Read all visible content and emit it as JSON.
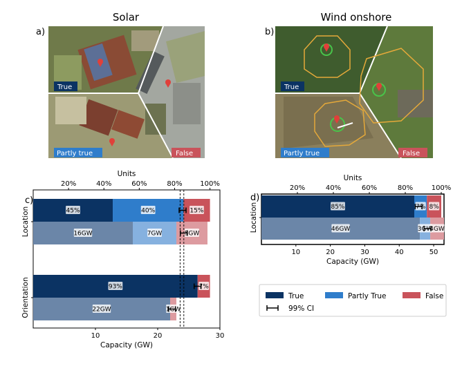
{
  "panels": {
    "a": {
      "title": "Solar",
      "label": "a)",
      "tags": {
        "true": "True",
        "partly": "Partly true",
        "false": "False"
      }
    },
    "b": {
      "title": "Wind onshore",
      "label": "b)",
      "tags": {
        "true": "True",
        "partly": "Partly true",
        "false": "False"
      }
    },
    "c": {
      "label": "c)"
    },
    "d": {
      "label": "d)"
    }
  },
  "colors": {
    "true_dark": "#0b3363",
    "partly_dark": "#2f7dcb",
    "false_dark": "#c9535b",
    "true_light": "#6b86a8",
    "partly_light": "#86b1df",
    "false_light": "#dd9ba0"
  },
  "legend": {
    "true": "True",
    "partly": "Partly True",
    "false": "False",
    "ci": "99% CI"
  },
  "chart_data": [
    {
      "type": "bar",
      "orientation": "horizontal-stacked",
      "title": "",
      "xlabel": "Capacity (GW)",
      "top_xlabel": "Units",
      "xlim": [
        0,
        30
      ],
      "xticks": [
        10,
        20,
        30
      ],
      "top_ticks": [
        "20%",
        "40%",
        "60%",
        "80%",
        "100%"
      ],
      "top_values": [
        20,
        40,
        60,
        80,
        100
      ],
      "groups": [
        {
          "name": "Location",
          "units": {
            "values": [
              45,
              40,
              15
            ],
            "labels": [
              "45%",
              "40%",
              "15%"
            ],
            "ci": 84.5
          },
          "capacity": {
            "values": [
              16,
              7,
              5
            ],
            "labels": [
              "16GW",
              "7GW",
              "5GW"
            ],
            "ci": 24.2
          }
        },
        {
          "name": "Orientation",
          "units": {
            "values": [
              93,
              0,
              7
            ],
            "labels": [
              "93%",
              "",
              "7%"
            ],
            "ci": 93
          },
          "capacity": {
            "values": [
              22,
              0,
              1
            ],
            "labels": [
              "22GW",
              "",
              "1GW"
            ],
            "ci": 22.3
          }
        }
      ],
      "dashed_refs": [
        23.6,
        24.2
      ]
    },
    {
      "type": "bar",
      "orientation": "horizontal-stacked",
      "title": "",
      "xlabel": "Capacity (GW)",
      "top_xlabel": "Units",
      "xlim": [
        0,
        53
      ],
      "xticks": [
        10,
        20,
        30,
        40,
        50
      ],
      "top_ticks": [
        "20%",
        "40%",
        "60%",
        "80%",
        "100%"
      ],
      "top_values": [
        20,
        40,
        60,
        80,
        100
      ],
      "groups": [
        {
          "name": "Location",
          "units": {
            "values": [
              85,
              7,
              8
            ],
            "labels": [
              "85%",
              "7%",
              "8%"
            ],
            "ci": 87.4
          },
          "capacity": {
            "values": [
              46,
              3,
              4
            ],
            "labels": [
              "46GW",
              "3GW",
              "4GW"
            ],
            "ci": 48.2
          }
        }
      ]
    }
  ]
}
